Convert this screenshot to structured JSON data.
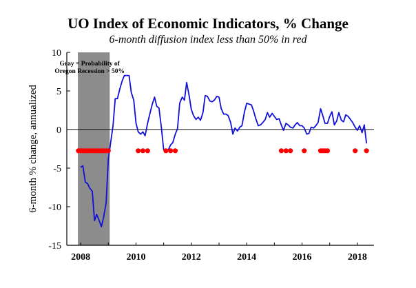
{
  "chart_data": {
    "type": "line",
    "title": "UO Index of Economic Indicators, % Change",
    "subtitle": "6-month diffusion index less than 50% in red",
    "ylabel": "6-month % change, annualized",
    "xlabel": "",
    "xlim": [
      2007.5,
      2018.6
    ],
    "ylim": [
      -15,
      10
    ],
    "x_ticks": [
      2008,
      2010,
      2012,
      2014,
      2016,
      2018
    ],
    "y_ticks": [
      -15,
      -10,
      -5,
      0,
      5,
      10
    ],
    "grid": false,
    "zero_line": true,
    "colors": {
      "line": "#1010d8",
      "red_dots": "#ff0000",
      "recession_band": "#8c8c8c",
      "axis": "#000000"
    },
    "recession_band": {
      "x_start": 2007.9,
      "x_end": 2009.05,
      "annotation_lines": [
        "Gray = Probability of",
        "Oregon Recession > 50%"
      ]
    },
    "series": [
      {
        "x": [
          2008.0,
          2008.08,
          2008.17,
          2008.25,
          2008.33,
          2008.42,
          2008.5,
          2008.58,
          2008.67,
          2008.75,
          2008.83,
          2008.92,
          2009.0,
          2009.08,
          2009.17,
          2009.25,
          2009.33,
          2009.42,
          2009.5,
          2009.58,
          2009.67,
          2009.75,
          2009.83,
          2009.92,
          2010.0,
          2010.08,
          2010.17,
          2010.25,
          2010.33,
          2010.42,
          2010.5,
          2010.58,
          2010.67,
          2010.75,
          2010.83,
          2010.92,
          2011.0,
          2011.08,
          2011.17,
          2011.25,
          2011.33,
          2011.42,
          2011.5,
          2011.58,
          2011.67,
          2011.75,
          2011.83,
          2011.92,
          2012.0,
          2012.08,
          2012.17,
          2012.25,
          2012.33,
          2012.42,
          2012.5,
          2012.58,
          2012.67,
          2012.75,
          2012.83,
          2012.92,
          2013.0,
          2013.08,
          2013.17,
          2013.25,
          2013.33,
          2013.42,
          2013.5,
          2013.58,
          2013.67,
          2013.75,
          2013.83,
          2013.92,
          2014.0,
          2014.08,
          2014.17,
          2014.25,
          2014.33,
          2014.42,
          2014.5,
          2014.58,
          2014.67,
          2014.75,
          2014.83,
          2014.92,
          2015.0,
          2015.08,
          2015.17,
          2015.25,
          2015.33,
          2015.42,
          2015.5,
          2015.58,
          2015.67,
          2015.75,
          2015.83,
          2015.92,
          2016.0,
          2016.08,
          2016.17,
          2016.25,
          2016.33,
          2016.42,
          2016.5,
          2016.58,
          2016.67,
          2016.75,
          2016.83,
          2016.92,
          2017.0,
          2017.08,
          2017.17,
          2017.25,
          2017.33,
          2017.42,
          2017.5,
          2017.58,
          2017.67,
          2017.75,
          2017.83,
          2017.92,
          2018.0,
          2018.08,
          2018.17,
          2018.25,
          2018.33
        ],
        "values": [
          -4.9,
          -4.7,
          -6.8,
          -7.0,
          -7.6,
          -8.0,
          -11.8,
          -11.0,
          -11.8,
          -12.6,
          -11.4,
          -9.5,
          -3.8,
          -1.8,
          0.5,
          4.0,
          4.0,
          5.3,
          6.3,
          7.0,
          7.0,
          7.0,
          4.8,
          3.8,
          0.8,
          -0.3,
          -0.6,
          -0.3,
          -0.8,
          0.8,
          2.0,
          3.2,
          4.2,
          3.0,
          2.8,
          0.2,
          -2.6,
          -2.9,
          -2.6,
          -2.0,
          -1.7,
          -0.6,
          0.1,
          3.4,
          4.2,
          3.8,
          6.1,
          4.4,
          2.6,
          1.8,
          1.3,
          1.6,
          1.2,
          2.2,
          4.4,
          4.3,
          3.7,
          3.6,
          3.8,
          4.3,
          4.2,
          2.7,
          2.0,
          2.0,
          1.8,
          0.9,
          -0.6,
          0.2,
          -0.2,
          0.3,
          0.5,
          2.3,
          3.4,
          3.3,
          3.2,
          2.4,
          1.4,
          0.5,
          0.6,
          0.9,
          1.3,
          2.2,
          1.6,
          2.1,
          1.7,
          1.3,
          1.4,
          0.6,
          -0.1,
          0.8,
          0.6,
          0.3,
          0.2,
          0.6,
          0.9,
          0.5,
          0.5,
          0.2,
          -0.6,
          -0.5,
          0.3,
          0.2,
          0.5,
          0.9,
          2.7,
          1.8,
          0.8,
          0.8,
          1.7,
          2.3,
          0.6,
          1.1,
          2.2,
          1.2,
          1.0,
          1.9,
          1.7,
          1.3,
          0.9,
          0.3,
          -0.1,
          0.5,
          -0.4,
          0.6,
          -1.8
        ]
      }
    ],
    "red_dots": {
      "y": -2.75,
      "x": [
        2007.92,
        2008.0,
        2008.08,
        2008.17,
        2008.25,
        2008.33,
        2008.42,
        2008.5,
        2008.58,
        2008.67,
        2008.75,
        2008.83,
        2008.92,
        2009.0,
        2010.08,
        2010.25,
        2010.42,
        2011.08,
        2011.25,
        2011.42,
        2015.25,
        2015.42,
        2015.58,
        2016.08,
        2016.67,
        2016.75,
        2016.83,
        2016.92,
        2017.92,
        2018.33
      ]
    }
  }
}
